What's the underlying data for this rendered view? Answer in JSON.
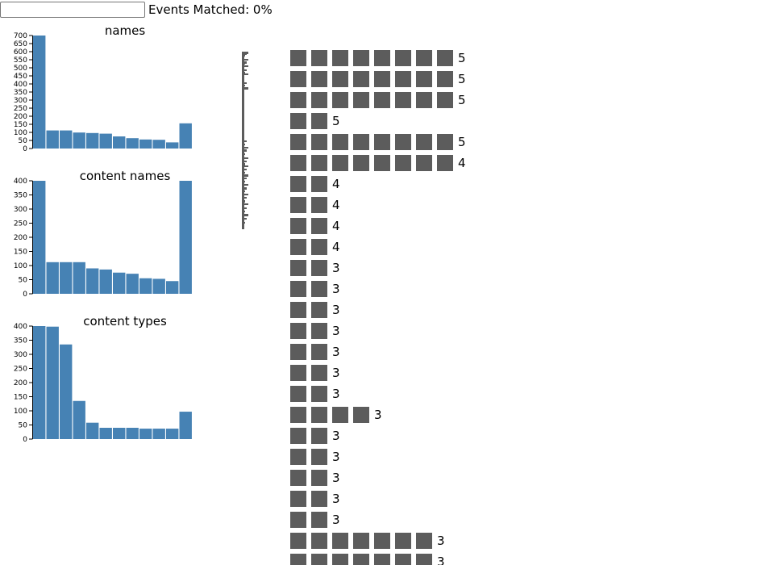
{
  "search": {
    "value": "",
    "placeholder": ""
  },
  "status": {
    "events_matched_label": "Events Matched: 0%"
  },
  "colors": {
    "bar": "#4682b4",
    "block": "#5c5c5c",
    "axis": "#000000"
  },
  "chart_data": [
    {
      "type": "bar",
      "title": "names",
      "xlabel": "",
      "ylabel": "",
      "ylim": [
        0,
        700
      ],
      "yticks": [
        0,
        50,
        100,
        150,
        200,
        250,
        300,
        350,
        400,
        450,
        500,
        550,
        600,
        650,
        700
      ],
      "values": [
        700,
        112,
        112,
        99,
        96,
        92,
        75,
        64,
        56,
        54,
        38,
        156
      ]
    },
    {
      "type": "bar",
      "title": "content names",
      "xlabel": "",
      "ylabel": "",
      "ylim": [
        0,
        400
      ],
      "yticks": [
        0,
        50,
        100,
        150,
        200,
        250,
        300,
        350,
        400
      ],
      "values": [
        400,
        112,
        112,
        112,
        90,
        86,
        75,
        71,
        55,
        53,
        45,
        400
      ]
    },
    {
      "type": "bar",
      "title": "content types",
      "xlabel": "",
      "ylabel": "",
      "ylim": [
        0,
        400
      ],
      "yticks": [
        0,
        50,
        100,
        150,
        200,
        250,
        300,
        350,
        400
      ],
      "values": [
        400,
        398,
        335,
        135,
        58,
        40,
        40,
        40,
        37,
        37,
        37,
        97
      ]
    }
  ],
  "event_rows": [
    {
      "blocks": 8,
      "count": "5"
    },
    {
      "blocks": 8,
      "count": "5"
    },
    {
      "blocks": 8,
      "count": "5"
    },
    {
      "blocks": 2,
      "count": "5"
    },
    {
      "blocks": 8,
      "count": "5"
    },
    {
      "blocks": 8,
      "count": "4"
    },
    {
      "blocks": 2,
      "count": "4"
    },
    {
      "blocks": 2,
      "count": "4"
    },
    {
      "blocks": 2,
      "count": "4"
    },
    {
      "blocks": 2,
      "count": "4"
    },
    {
      "blocks": 2,
      "count": "3"
    },
    {
      "blocks": 2,
      "count": "3"
    },
    {
      "blocks": 2,
      "count": "3"
    },
    {
      "blocks": 2,
      "count": "3"
    },
    {
      "blocks": 2,
      "count": "3"
    },
    {
      "blocks": 2,
      "count": "3"
    },
    {
      "blocks": 2,
      "count": "3"
    },
    {
      "blocks": 4,
      "count": "3"
    },
    {
      "blocks": 2,
      "count": "3"
    },
    {
      "blocks": 2,
      "count": "3"
    },
    {
      "blocks": 2,
      "count": "3"
    },
    {
      "blocks": 2,
      "count": "3"
    },
    {
      "blocks": 2,
      "count": "3"
    },
    {
      "blocks": 7,
      "count": "3"
    },
    {
      "blocks": 7,
      "count": "3"
    }
  ]
}
